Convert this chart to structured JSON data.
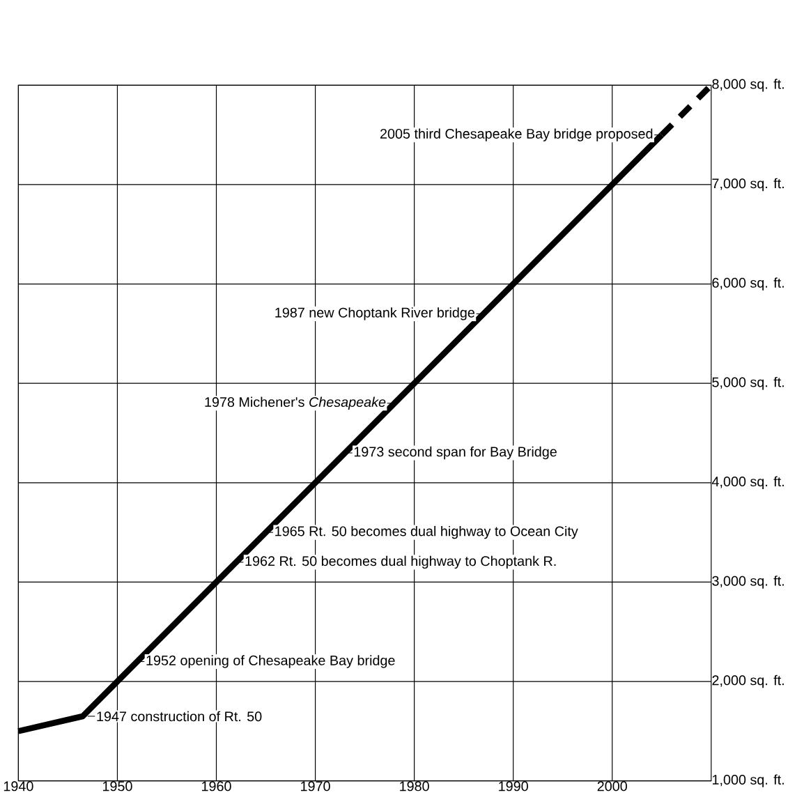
{
  "chart_data": {
    "type": "line",
    "x": [
      1940,
      1946.5,
      2005
    ],
    "series": [
      {
        "color": "#000000",
        "values": [
          1500,
          1650,
          7500
        ],
        "line_style": "solid"
      },
      {
        "color": "#000000",
        "x": [
          2005,
          2010
        ],
        "values": [
          7500,
          8000
        ],
        "line_style": "dashed"
      }
    ],
    "xlim": [
      1940,
      2010
    ],
    "ylim": [
      1000,
      8000
    ],
    "xticks": [
      1940,
      1950,
      1960,
      1970,
      1980,
      1990,
      2000
    ],
    "yticks": [
      {
        "value": 1000,
        "label": "1,000 sq. ft."
      },
      {
        "value": 2000,
        "label": "2,000 sq. ft."
      },
      {
        "value": 3000,
        "label": "3,000 sq. ft."
      },
      {
        "value": 4000,
        "label": "4,000 sq. ft."
      },
      {
        "value": 5000,
        "label": "5,000 sq. ft."
      },
      {
        "value": 6000,
        "label": "6,000 sq. ft."
      },
      {
        "value": 7000,
        "label": "7,000 sq. ft."
      },
      {
        "value": 8000,
        "label": "8,000 sq. ft."
      }
    ],
    "grid": true,
    "marker": "none",
    "annotations": [
      {
        "text": "1947 construction of Rt. 50",
        "x": 1947,
        "y": 1650
      },
      {
        "text": "1952 opening of Chesapeake Bay bridge",
        "x": 1952,
        "y": 2200
      },
      {
        "text": "1962 Rt. 50 becomes dual highway to Choptank R.",
        "x": 1962,
        "y": 3200
      },
      {
        "text": "1965 Rt. 50 becomes dual highway to Ocean City",
        "x": 1965,
        "y": 3500
      },
      {
        "text": "1973 second span for Bay Bridge",
        "x": 1973,
        "y": 4300
      },
      {
        "text": "1978 Michener's *Chesapeake*",
        "x": 1978,
        "y": 4800
      },
      {
        "text": "1987 new Choptank River bridge",
        "x": 1987,
        "y": 5700
      },
      {
        "text": "2005 third Chesapeake Bay bridge proposed",
        "x": 2005,
        "y": 7500
      }
    ]
  }
}
